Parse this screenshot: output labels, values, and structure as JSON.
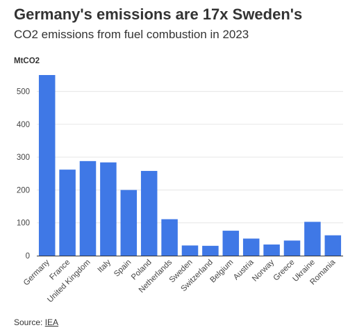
{
  "header": {
    "title": "Germany's emissions are 17x Sweden's",
    "subtitle": "CO2 emissions from fuel combustion in 2023"
  },
  "footer": {
    "source_prefix": "Source: ",
    "source_link": "IEA"
  },
  "colors": {
    "bar": "#3f78e6",
    "grid": "#e6e6e6",
    "axis": "#333333"
  },
  "chart_data": {
    "type": "bar",
    "title": "Germany's emissions are 17x Sweden's",
    "subtitle": "CO2 emissions from fuel combustion in 2023",
    "ylabel": "MtCO2",
    "xlabel": "",
    "ylim": [
      0,
      550
    ],
    "yticks": [
      0,
      100,
      200,
      300,
      400,
      500
    ],
    "grid": true,
    "legend": "none",
    "categories": [
      "Germany",
      "France",
      "United Kingdom",
      "Italy",
      "Spain",
      "Poland",
      "Netherlands",
      "Sweden",
      "Switzerland",
      "Belgium",
      "Austria",
      "Norway",
      "Greece",
      "Ukraine",
      "Romania"
    ],
    "values": [
      550,
      262,
      288,
      284,
      200,
      258,
      111,
      31,
      30,
      76,
      52,
      34,
      46,
      103,
      62
    ]
  }
}
